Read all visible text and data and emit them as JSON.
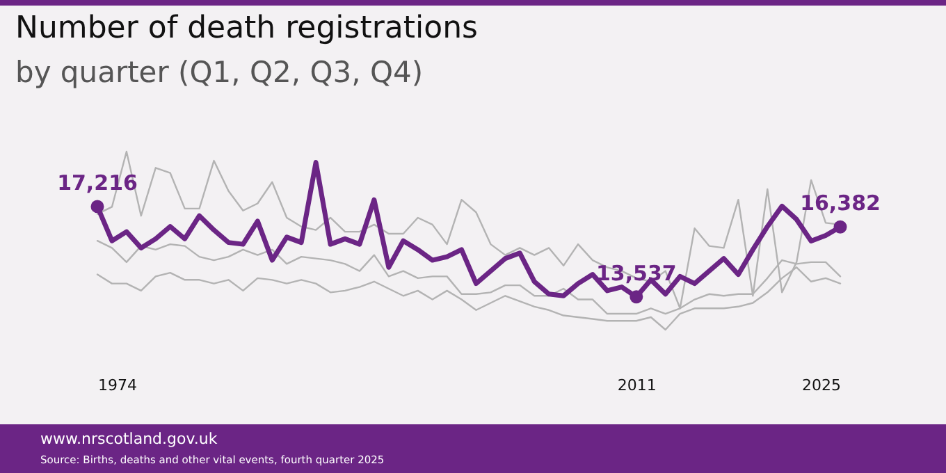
{
  "chart_data": {
    "type": "line",
    "title": "Number of death registrations",
    "subtitle": "by quarter (Q1, Q2, Q3, Q4)",
    "x": [
      1974,
      1975,
      1976,
      1977,
      1978,
      1979,
      1980,
      1981,
      1982,
      1983,
      1984,
      1985,
      1986,
      1987,
      1988,
      1989,
      1990,
      1991,
      1992,
      1993,
      1994,
      1995,
      1996,
      1997,
      1998,
      1999,
      2000,
      2001,
      2002,
      2003,
      2004,
      2005,
      2006,
      2007,
      2008,
      2009,
      2010,
      2011,
      2012,
      2013,
      2014,
      2015,
      2016,
      2017,
      2018,
      2019,
      2020,
      2021,
      2022,
      2023,
      2024,
      2025
    ],
    "xlim": [
      1974,
      2025
    ],
    "xticks": [
      1974,
      2011,
      2025
    ],
    "tick_labels": "x",
    "series": [
      {
        "color": "#b3b3b3",
        "values": [
          16910,
          17200,
          19450,
          16840,
          18790,
          18580,
          17130,
          17130,
          19080,
          17850,
          17050,
          17340,
          18210,
          16760,
          16400,
          16260,
          16760,
          16190,
          16190,
          16480,
          16110,
          16110,
          16760,
          16480,
          15680,
          17490,
          16980,
          15680,
          15240,
          15530,
          15240,
          15530,
          14810,
          15680,
          15030,
          14740,
          14590,
          14300,
          14160,
          14590,
          13070,
          16330,
          15610,
          15530,
          17490,
          13580,
          17920,
          13720,
          14950,
          18290,
          16550,
          16480
        ]
      },
      {
        "color": "#b3b3b3",
        "values": [
          15820,
          15530,
          14950,
          15610,
          15460,
          15680,
          15610,
          15170,
          15030,
          15170,
          15460,
          15240,
          15460,
          14880,
          15170,
          15100,
          15030,
          14880,
          14590,
          15240,
          14370,
          14590,
          14300,
          14370,
          14370,
          13650,
          13650,
          13720,
          14010,
          14010,
          13580,
          13580,
          13870,
          13430,
          13430,
          12850,
          12850,
          12850,
          13070,
          12850,
          13070,
          13430,
          13650,
          13580,
          13650,
          13650,
          14300,
          15030,
          14880,
          14950,
          14950,
          14370
        ]
      },
      {
        "color": "#b3b3b3",
        "values": [
          14450,
          14080,
          14080,
          13790,
          14370,
          14520,
          14230,
          14230,
          14080,
          14230,
          13790,
          14300,
          14230,
          14080,
          14230,
          14080,
          13720,
          13790,
          13940,
          14160,
          13870,
          13580,
          13790,
          13430,
          13790,
          13430,
          13000,
          13290,
          13580,
          13360,
          13140,
          13000,
          12780,
          12710,
          12640,
          12560,
          12560,
          12560,
          12710,
          12200,
          12850,
          13070,
          13070,
          13070,
          13140,
          13290,
          13720,
          14300,
          14740,
          14160,
          14300,
          14080
        ]
      },
      {
        "color": "#6b2585",
        "values": [
          17216,
          15820,
          16190,
          15530,
          15900,
          16400,
          15900,
          16840,
          16260,
          15750,
          15680,
          16620,
          15030,
          15970,
          15750,
          19010,
          15680,
          15900,
          15680,
          17490,
          14740,
          15820,
          15460,
          15030,
          15170,
          15460,
          14080,
          14590,
          15100,
          15320,
          14160,
          13650,
          13580,
          14080,
          14450,
          13790,
          13940,
          13537,
          14230,
          13650,
          14370,
          14080,
          14590,
          15100,
          14450,
          15460,
          16400,
          17230,
          16690,
          15810,
          16040,
          16382
        ],
        "value_labels": [
          "17,216",
          null,
          null,
          null,
          null,
          null,
          null,
          null,
          null,
          null,
          null,
          null,
          null,
          null,
          null,
          null,
          null,
          null,
          null,
          null,
          null,
          null,
          null,
          null,
          null,
          null,
          null,
          null,
          null,
          null,
          null,
          null,
          null,
          null,
          null,
          null,
          null,
          "13,537",
          null,
          null,
          null,
          null,
          null,
          null,
          null,
          null,
          null,
          null,
          null,
          null,
          null,
          "16,382"
        ]
      }
    ],
    "annotations": [
      "www.nrscotland.gov.uk",
      "Source: Births, deaths and other vital events, fourth quarter 2025"
    ]
  }
}
